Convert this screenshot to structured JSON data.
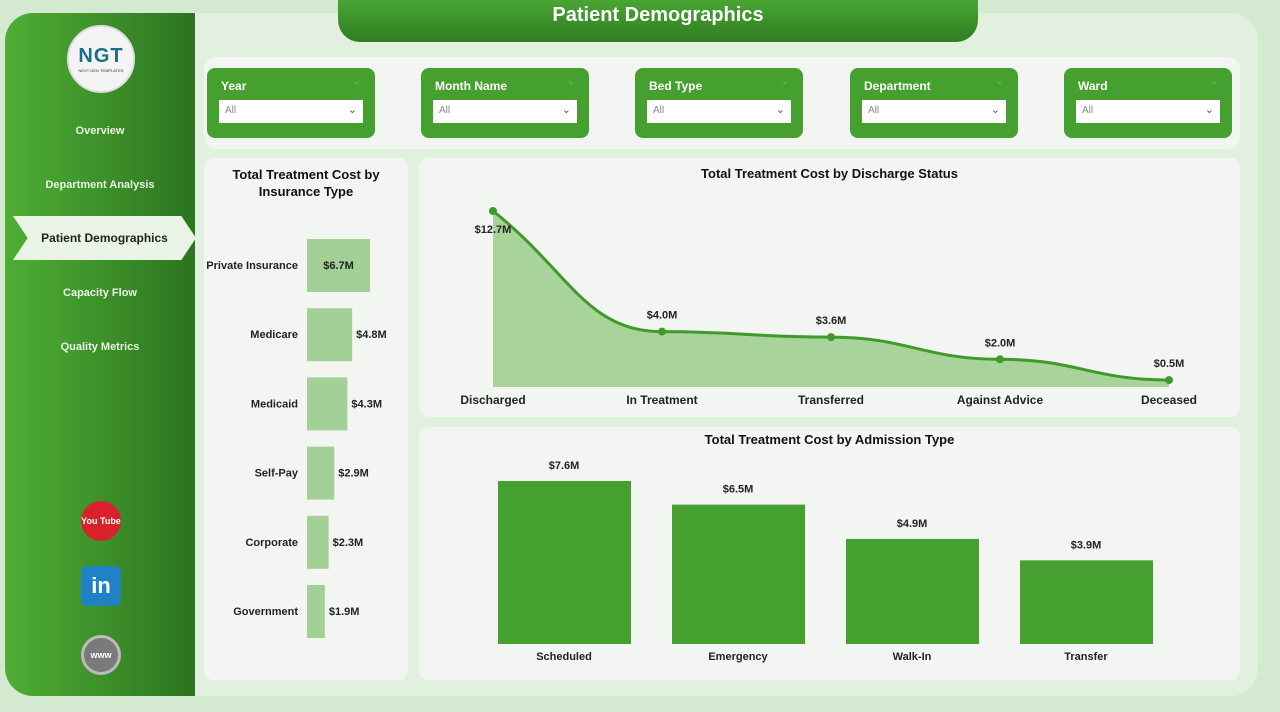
{
  "logo": {
    "text": "NGT",
    "subtitle": "NEXT GEN TEMPLATES"
  },
  "header": {
    "title": "Patient Demographics"
  },
  "sidebar": {
    "items": [
      {
        "label": "Overview"
      },
      {
        "label": "Department Analysis"
      },
      {
        "label": "Patient Demographics",
        "active": true
      },
      {
        "label": "Capacity Flow"
      },
      {
        "label": "Quality Metrics"
      }
    ],
    "social": [
      {
        "icon": "youtube-icon",
        "text": "You Tube",
        "color": "#d8212a"
      },
      {
        "icon": "linkedin-icon",
        "text": "in",
        "color": "#1e82c4"
      },
      {
        "icon": "globe-icon",
        "text": "www",
        "color": "#7a7a7a"
      }
    ]
  },
  "filters": [
    {
      "label": "Year",
      "value": "All"
    },
    {
      "label": "Month Name",
      "value": "All"
    },
    {
      "label": "Bed Type",
      "value": "All"
    },
    {
      "label": "Department",
      "value": "All"
    },
    {
      "label": "Ward",
      "value": "All"
    }
  ],
  "colors": {
    "accent": "#45a02f",
    "light_bar": "#a3d096",
    "area": "#a8d39b"
  },
  "chart_data": [
    {
      "type": "bar",
      "orientation": "horizontal",
      "title": "Total Treatment Cost by Insurance Type",
      "categories": [
        "Private Insurance",
        "Medicare",
        "Medicaid",
        "Self-Pay",
        "Corporate",
        "Government"
      ],
      "values": [
        6.7,
        4.8,
        4.3,
        2.9,
        2.3,
        1.9
      ],
      "labels": [
        "$6.7M",
        "$4.8M",
        "$4.3M",
        "$2.9M",
        "$2.3M",
        "$1.9M"
      ],
      "unit": "$M"
    },
    {
      "type": "area",
      "title": "Total Treatment Cost by Discharge Status",
      "categories": [
        "Discharged",
        "In Treatment",
        "Transferred",
        "Against Advice",
        "Deceased"
      ],
      "values": [
        12.7,
        4.0,
        3.6,
        2.0,
        0.5
      ],
      "labels": [
        "$12.7M",
        "$4.0M",
        "$3.6M",
        "$2.0M",
        "$0.5M"
      ],
      "unit": "$M"
    },
    {
      "type": "bar",
      "title": "Total Treatment Cost by Admission Type",
      "categories": [
        "Scheduled",
        "Emergency",
        "Walk-In",
        "Transfer"
      ],
      "values": [
        7.6,
        6.5,
        4.9,
        3.9
      ],
      "labels": [
        "$7.6M",
        "$6.5M",
        "$4.9M",
        "$3.9M"
      ],
      "unit": "$M"
    }
  ]
}
